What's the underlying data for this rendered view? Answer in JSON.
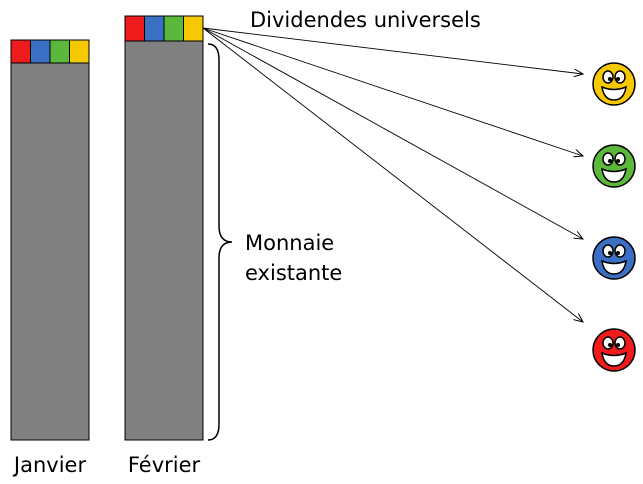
{
  "dividends_label": "Dividendes universels",
  "existing_label": [
    "Monnaie",
    "existante"
  ],
  "bars": [
    {
      "label": "Janvier"
    },
    {
      "label": "Février"
    }
  ]
}
